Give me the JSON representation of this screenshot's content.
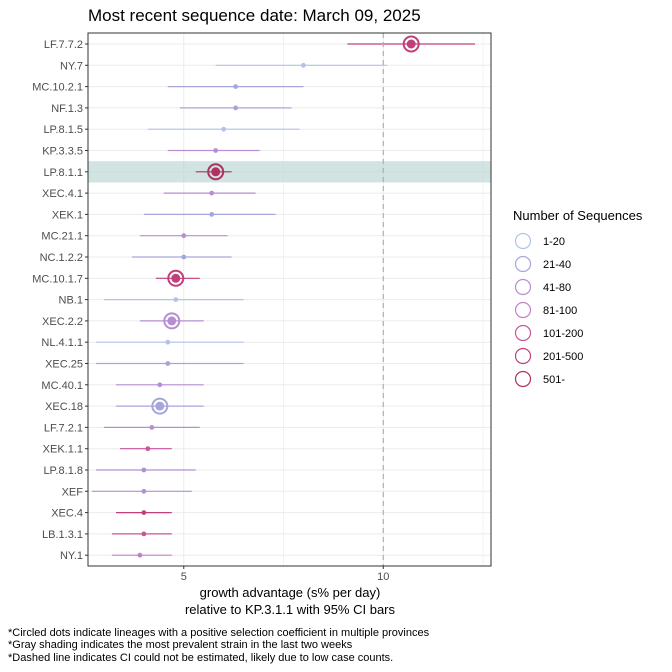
{
  "chart_data": {
    "type": "scatter",
    "title": "Most recent sequence date: March 09, 2025",
    "xlabel_line1": "growth advantage (s% per day)",
    "xlabel_line2": "relative to  KP.3.1.1  with 95% CI bars",
    "xlim": [
      2.6,
      12.7
    ],
    "xticks": [
      5,
      10
    ],
    "grid": true,
    "dashed_line_x": 10,
    "highlighted_lineage": "LP.8.1.1",
    "points": [
      {
        "lineage": "LF.7.7.2",
        "value": 10.7,
        "lo": 9.1,
        "hi": 12.3,
        "count_bin": "201-500",
        "circled": true
      },
      {
        "lineage": "NY.7",
        "value": 8.0,
        "lo": 5.8,
        "hi": 10.1,
        "count_bin": "1-20",
        "circled": false
      },
      {
        "lineage": "MC.10.2.1",
        "value": 6.3,
        "lo": 4.6,
        "hi": 8.0,
        "count_bin": "21-40",
        "circled": false
      },
      {
        "lineage": "NF.1.3",
        "value": 6.3,
        "lo": 4.9,
        "hi": 7.7,
        "count_bin": "21-40",
        "circled": false
      },
      {
        "lineage": "LP.8.1.5",
        "value": 6.0,
        "lo": 4.1,
        "hi": 7.9,
        "count_bin": "1-20",
        "circled": false
      },
      {
        "lineage": "KP.3.3.5",
        "value": 5.8,
        "lo": 4.6,
        "hi": 6.9,
        "count_bin": "41-80",
        "circled": false
      },
      {
        "lineage": "LP.8.1.1",
        "value": 5.8,
        "lo": 5.3,
        "hi": 6.2,
        "count_bin": "501-",
        "circled": true
      },
      {
        "lineage": "XEC.4.1",
        "value": 5.7,
        "lo": 4.5,
        "hi": 6.8,
        "count_bin": "41-80",
        "circled": false
      },
      {
        "lineage": "XEK.1",
        "value": 5.7,
        "lo": 4.0,
        "hi": 7.3,
        "count_bin": "21-40",
        "circled": false
      },
      {
        "lineage": "MC.21.1",
        "value": 5.0,
        "lo": 3.9,
        "hi": 6.1,
        "count_bin": "41-80",
        "circled": false
      },
      {
        "lineage": "NC.1.2.2",
        "value": 5.0,
        "lo": 3.7,
        "hi": 6.2,
        "count_bin": "21-40",
        "circled": false
      },
      {
        "lineage": "MC.10.1.7",
        "value": 4.8,
        "lo": 4.3,
        "hi": 5.4,
        "count_bin": "201-500",
        "circled": true
      },
      {
        "lineage": "NB.1",
        "value": 4.8,
        "lo": 3.0,
        "hi": 6.5,
        "count_bin": "1-20",
        "circled": false
      },
      {
        "lineage": "XEC.2.2",
        "value": 4.7,
        "lo": 3.9,
        "hi": 5.5,
        "count_bin": "41-80",
        "circled": true
      },
      {
        "lineage": "NL.4.1.1",
        "value": 4.6,
        "lo": 2.8,
        "hi": 6.5,
        "count_bin": "1-20",
        "circled": false
      },
      {
        "lineage": "XEC.25",
        "value": 4.6,
        "lo": 2.8,
        "hi": 6.5,
        "count_bin": "21-40",
        "circled": false
      },
      {
        "lineage": "MC.40.1",
        "value": 4.4,
        "lo": 3.3,
        "hi": 5.5,
        "count_bin": "41-80",
        "circled": false
      },
      {
        "lineage": "XEC.18",
        "value": 4.4,
        "lo": 3.3,
        "hi": 5.5,
        "count_bin": "21-40",
        "circled": true
      },
      {
        "lineage": "LF.7.2.1",
        "value": 4.2,
        "lo": 3.0,
        "hi": 5.4,
        "count_bin": "41-80",
        "circled": false
      },
      {
        "lineage": "XEK.1.1",
        "value": 4.1,
        "lo": 3.4,
        "hi": 4.7,
        "count_bin": "101-200",
        "circled": false
      },
      {
        "lineage": "LP.8.1.8",
        "value": 4.0,
        "lo": 2.8,
        "hi": 5.3,
        "count_bin": "41-80",
        "circled": false
      },
      {
        "lineage": "XEF",
        "value": 4.0,
        "lo": 2.7,
        "hi": 5.2,
        "count_bin": "41-80",
        "circled": false
      },
      {
        "lineage": "XEC.4",
        "value": 4.0,
        "lo": 3.3,
        "hi": 4.7,
        "count_bin": "201-500",
        "circled": false
      },
      {
        "lineage": "LB.1.3.1",
        "value": 4.0,
        "lo": 3.2,
        "hi": 4.7,
        "count_bin": "101-200",
        "circled": false
      },
      {
        "lineage": "NY.1",
        "value": 3.9,
        "lo": 3.2,
        "hi": 4.7,
        "count_bin": "81-100",
        "circled": false
      }
    ],
    "legend": {
      "title": "Number of Sequences",
      "placement": "right",
      "items": [
        {
          "label": "1-20",
          "color": "#b3c3e8"
        },
        {
          "label": "21-40",
          "color": "#a6a6dc"
        },
        {
          "label": "41-80",
          "color": "#b68fd2"
        },
        {
          "label": "81-100",
          "color": "#c47fc8"
        },
        {
          "label": "101-200",
          "color": "#c8559e"
        },
        {
          "label": "201-500",
          "color": "#c0407a"
        },
        {
          "label": "501-",
          "color": "#b03060"
        }
      ]
    },
    "footnotes": [
      "*Circled dots indicate lineages with a positive selection coefficient in multiple provinces",
      "*Gray shading indicates the most prevalent strain in the last two weeks",
      "*Dashed line indicates CI could not be estimated, likely due to low case counts."
    ]
  }
}
